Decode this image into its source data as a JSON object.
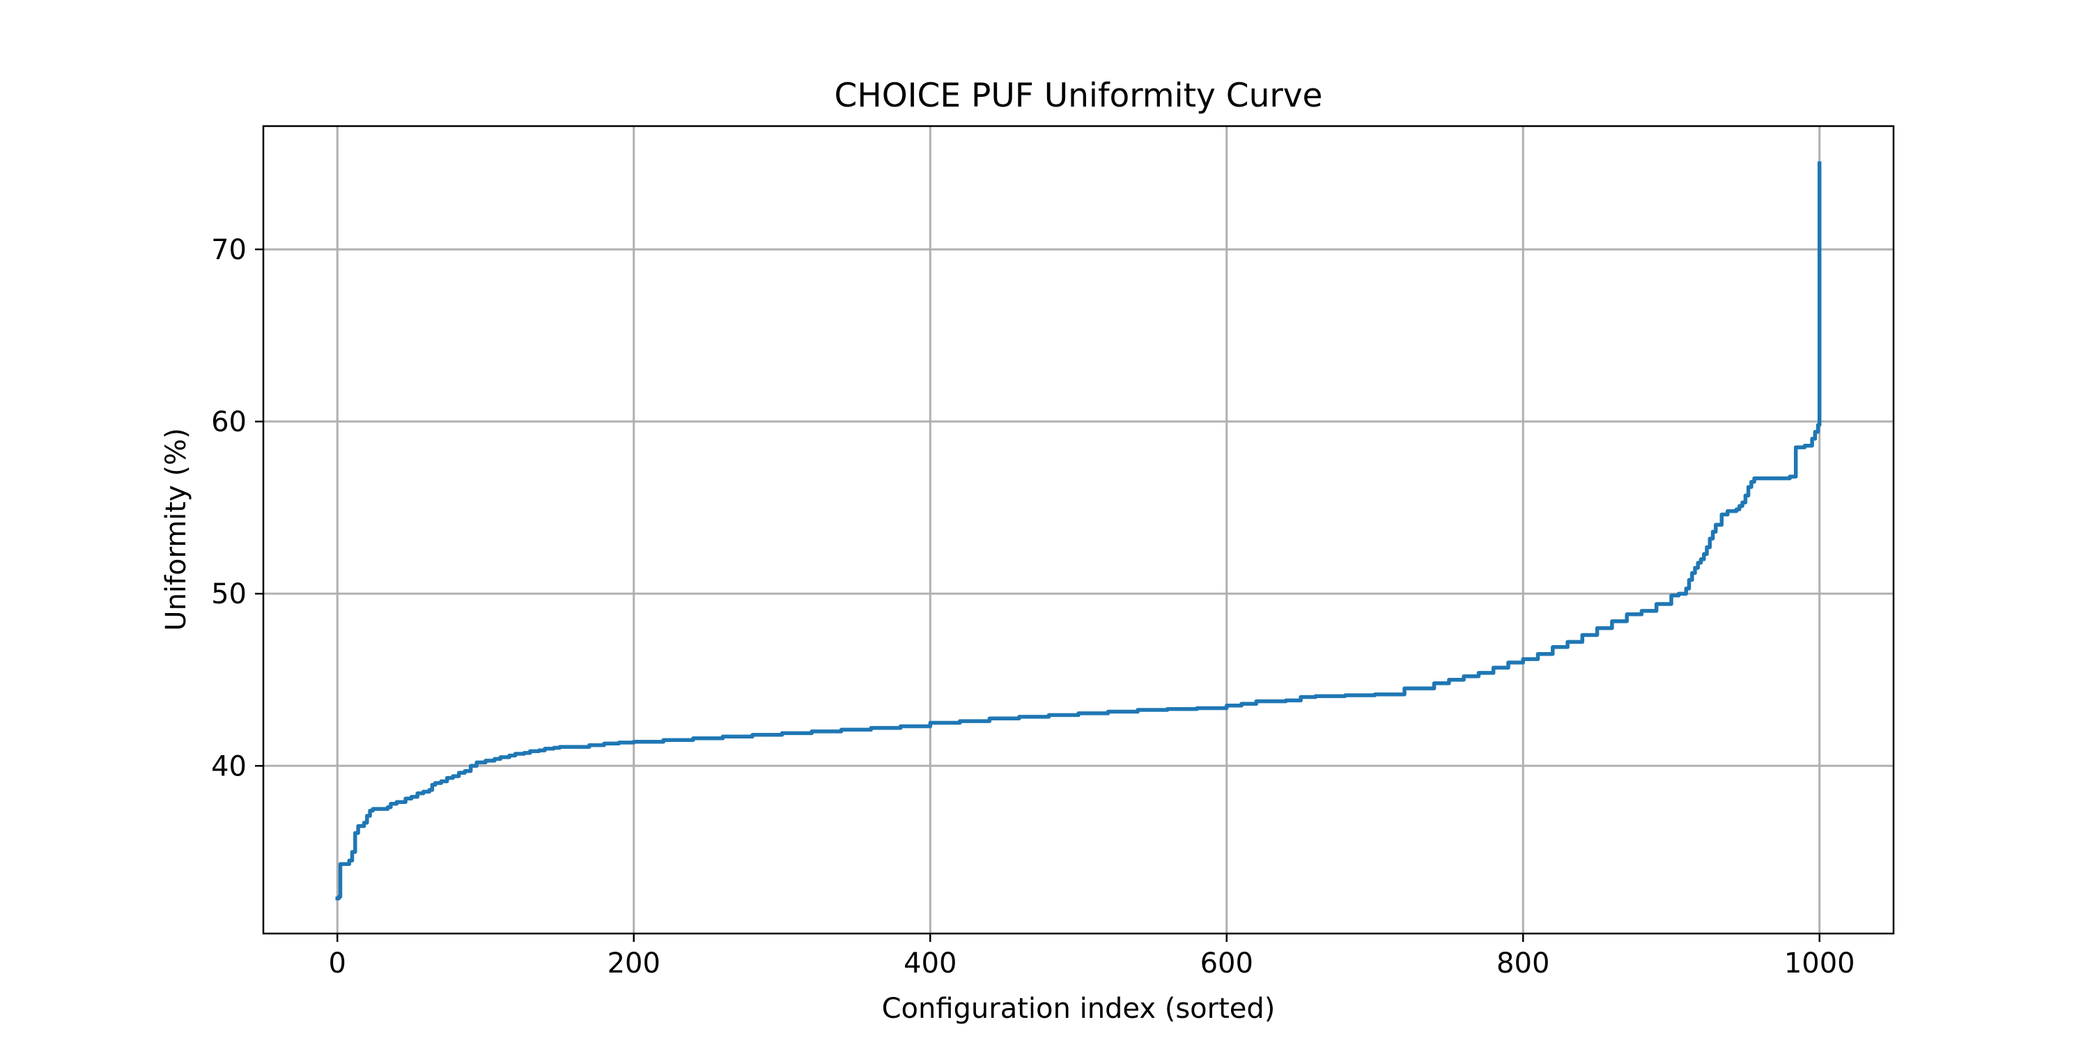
{
  "chart_data": {
    "type": "line",
    "title": "CHOICE PUF Uniformity Curve",
    "xlabel": "Configuration index (sorted)",
    "ylabel": "Uniformity (%)",
    "xlim": [
      -49.95,
      1049.95
    ],
    "ylim": [
      30.26,
      77.16
    ],
    "xticks": [
      0,
      200,
      400,
      600,
      800,
      1000
    ],
    "yticks": [
      40,
      50,
      60,
      70
    ],
    "xtick_labels": [
      "0",
      "200",
      "400",
      "600",
      "800",
      "1000"
    ],
    "ytick_labels": [
      "40",
      "50",
      "60",
      "70"
    ],
    "grid": true,
    "legend": "none",
    "series": [
      {
        "color": "#1f77b4",
        "x": [
          0,
          1,
          2,
          8,
          10,
          12,
          14,
          18,
          20,
          22,
          24,
          34,
          36,
          40,
          46,
          50,
          54,
          58,
          62,
          64,
          66,
          70,
          74,
          78,
          82,
          86,
          90,
          94,
          100,
          106,
          110,
          116,
          120,
          126,
          130,
          136,
          140,
          146,
          150,
          170,
          180,
          190,
          200,
          220,
          240,
          260,
          280,
          300,
          320,
          340,
          360,
          380,
          400,
          420,
          440,
          460,
          480,
          500,
          520,
          540,
          560,
          580,
          600,
          610,
          620,
          640,
          650,
          660,
          680,
          700,
          720,
          740,
          750,
          760,
          770,
          780,
          790,
          800,
          810,
          820,
          830,
          840,
          850,
          860,
          870,
          880,
          890,
          900,
          905,
          910,
          912,
          914,
          916,
          918,
          920,
          922,
          924,
          926,
          928,
          930,
          934,
          938,
          944,
          946,
          948,
          950,
          952,
          954,
          956,
          958,
          960,
          980,
          984,
          990,
          995,
          997,
          999,
          1000,
          1000
        ],
        "y": [
          32.3,
          32.4,
          34.3,
          34.5,
          35.0,
          36.1,
          36.5,
          36.7,
          37.1,
          37.4,
          37.5,
          37.6,
          37.8,
          37.9,
          38.1,
          38.2,
          38.4,
          38.5,
          38.6,
          38.9,
          39.0,
          39.1,
          39.3,
          39.4,
          39.6,
          39.7,
          40.0,
          40.2,
          40.3,
          40.4,
          40.5,
          40.6,
          40.7,
          40.75,
          40.85,
          40.9,
          41.0,
          41.05,
          41.1,
          41.2,
          41.3,
          41.35,
          41.4,
          41.5,
          41.6,
          41.7,
          41.8,
          41.9,
          42.0,
          42.1,
          42.2,
          42.3,
          42.5,
          42.6,
          42.75,
          42.85,
          42.95,
          43.05,
          43.15,
          43.25,
          43.3,
          43.35,
          43.5,
          43.6,
          43.75,
          43.8,
          44.0,
          44.05,
          44.1,
          44.15,
          44.5,
          44.8,
          45.0,
          45.2,
          45.4,
          45.7,
          46.0,
          46.2,
          46.5,
          46.9,
          47.2,
          47.6,
          48.0,
          48.4,
          48.8,
          49.0,
          49.4,
          49.9,
          50.0,
          50.3,
          50.8,
          51.2,
          51.5,
          51.8,
          52.0,
          52.3,
          52.7,
          53.2,
          53.6,
          54.0,
          54.6,
          54.8,
          54.9,
          55.1,
          55.3,
          55.7,
          56.2,
          56.5,
          56.7,
          56.7,
          56.7,
          56.8,
          58.5,
          58.6,
          59.0,
          59.4,
          59.8,
          60.0,
          75.0
        ]
      }
    ]
  }
}
